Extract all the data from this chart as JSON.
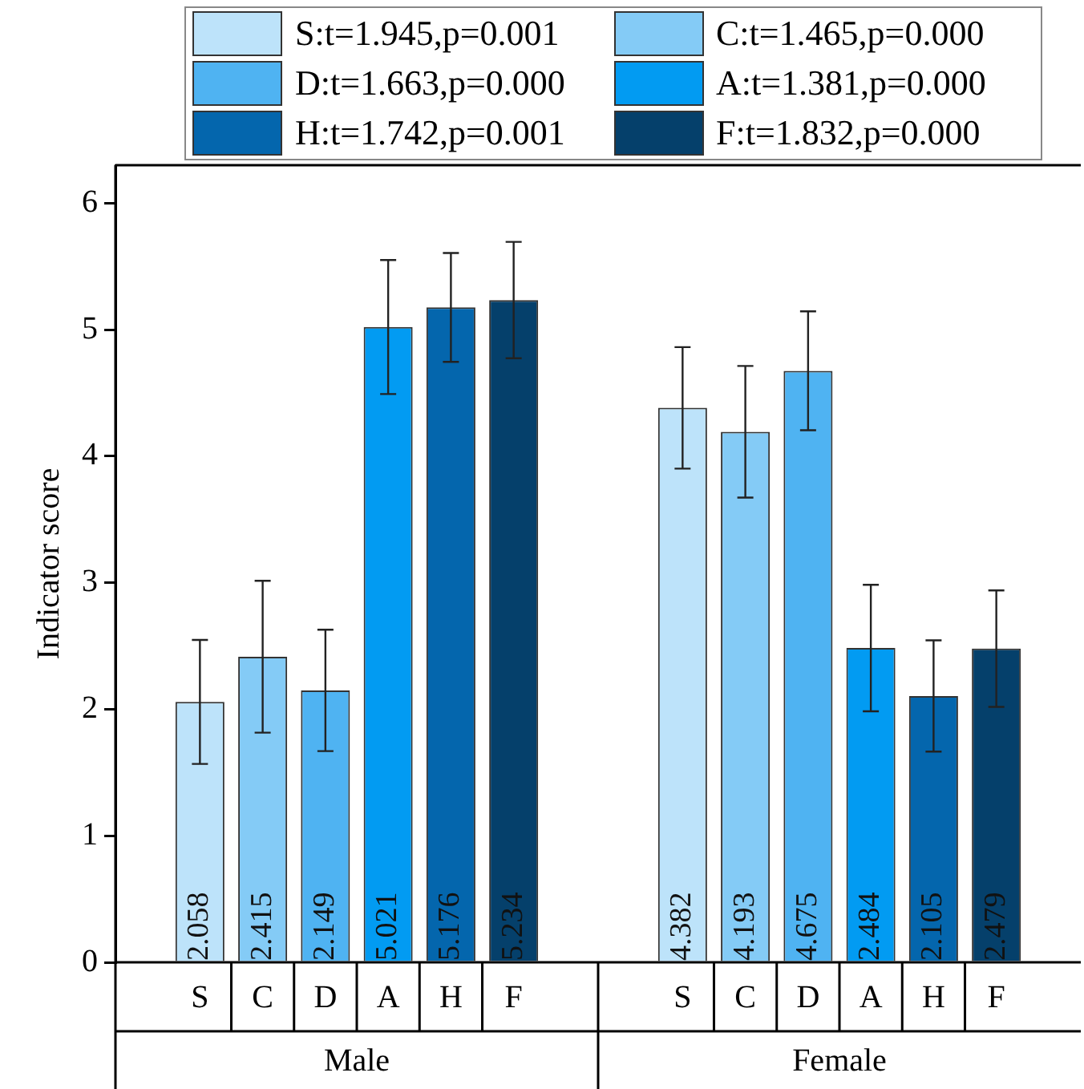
{
  "chart_data": {
    "type": "bar",
    "ylabel": "Indicator score",
    "categories": [
      "Male",
      "Female"
    ],
    "series": [
      {
        "name": "S:t=1.945,p=0.001",
        "color": "#bde3fa",
        "values": [
          2.058,
          4.382
        ],
        "errors": [
          0.49,
          0.48
        ]
      },
      {
        "name": "C:t=1.465,p=0.000",
        "color": "#84cbf6",
        "values": [
          2.415,
          4.193
        ],
        "errors": [
          0.6,
          0.52
        ]
      },
      {
        "name": "D:t=1.663,p=0.000",
        "color": "#4fb3f2",
        "values": [
          2.149,
          4.675
        ],
        "errors": [
          0.48,
          0.47
        ]
      },
      {
        "name": "A:t=1.381,p=0.000",
        "color": "#029bf2",
        "values": [
          5.021,
          2.484
        ],
        "errors": [
          0.53,
          0.5
        ]
      },
      {
        "name": "H:t=1.742,p=0.001",
        "color": "#0466ad",
        "values": [
          5.176,
          2.105
        ],
        "errors": [
          0.43,
          0.44
        ]
      },
      {
        "name": "F:t=1.832,p=0.000",
        "color": "#05406b",
        "values": [
          5.234,
          2.479
        ],
        "errors": [
          0.46,
          0.46
        ]
      }
    ],
    "annotations": [
      "S",
      "C",
      "D",
      "A",
      "H",
      "F",
      "S",
      "C",
      "D",
      "A",
      "H",
      "F"
    ],
    "ylim": [
      0,
      6.3
    ],
    "yticks": [
      0,
      1,
      2,
      3,
      4,
      5,
      6
    ],
    "data_labels": true,
    "legend": "top",
    "grid": false
  }
}
